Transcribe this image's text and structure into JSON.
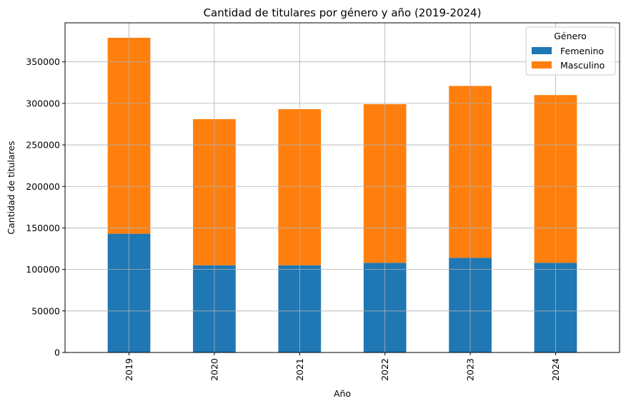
{
  "chart_data": {
    "type": "bar",
    "stacked": true,
    "title": "Cantidad de titulares por género y año (2019-2024)",
    "xlabel": "Año",
    "ylabel": "Cantidad de titulares",
    "categories": [
      "2019",
      "2020",
      "2021",
      "2022",
      "2023",
      "2024"
    ],
    "series": [
      {
        "name": "Femenino",
        "color": "#1f77b4",
        "values": [
          143000,
          105000,
          105000,
          108000,
          114000,
          108000
        ]
      },
      {
        "name": "Masculino",
        "color": "#ff7f0e",
        "values": [
          236000,
          176000,
          188000,
          191000,
          207000,
          202000
        ]
      }
    ],
    "ylim": [
      0,
      397000
    ],
    "yticks": [
      0,
      50000,
      100000,
      150000,
      200000,
      250000,
      300000,
      350000
    ],
    "grid": true,
    "legend": {
      "title": "Género",
      "placement": "top-right"
    }
  }
}
